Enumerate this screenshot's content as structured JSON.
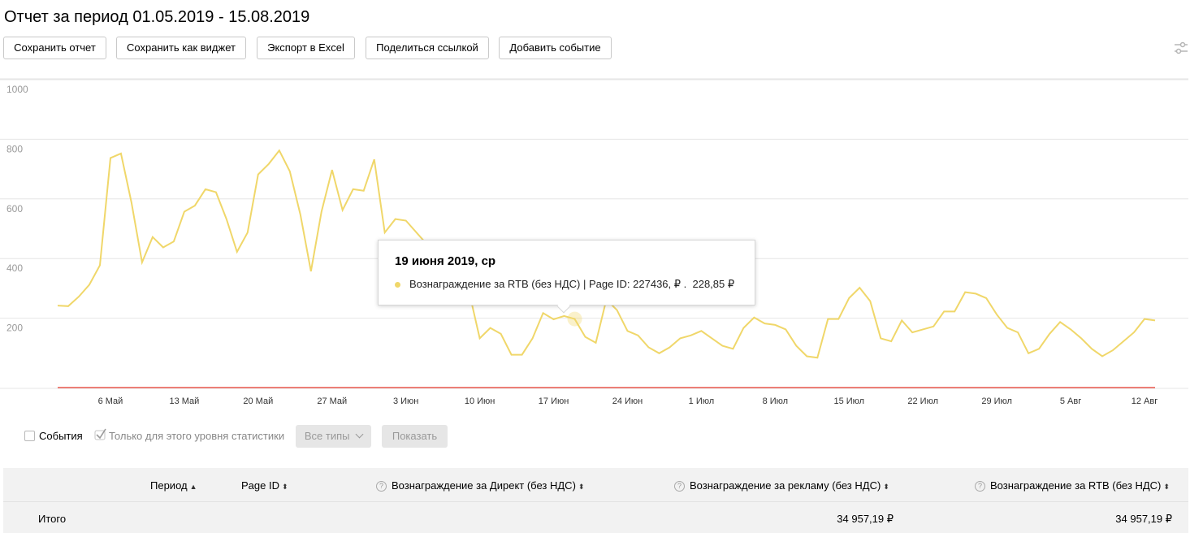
{
  "report": {
    "title": "Отчет за период 01.05.2019 - 15.08.2019"
  },
  "toolbar": {
    "save_report": "Сохранить отчет",
    "save_widget": "Сохранить как виджет",
    "export_excel": "Экспорт в Excel",
    "share_link": "Поделиться ссылкой",
    "add_event": "Добавить событие",
    "settings_icon": "sliders-icon"
  },
  "chart_data": {
    "type": "line",
    "ylim": [
      0,
      1000
    ],
    "yticks": [
      "1000",
      "800",
      "600",
      "400",
      "200"
    ],
    "xticks": [
      "6 Май",
      "13 Май",
      "20 Май",
      "27 Май",
      "3 Июн",
      "10 Июн",
      "17 Июн",
      "24 Июн",
      "1 Июл",
      "8 Июл",
      "15 Июл",
      "22 Июл",
      "29 Июл",
      "5 Авг",
      "12 Авг"
    ],
    "x_start": "2019-05-01",
    "x_end": "2019-08-15",
    "grid": true,
    "series": [
      {
        "name": "Вознаграждение за RTB (без НДС) | Page ID: 227436, ₽",
        "color": "#f0d76a",
        "values": [
          275,
          273,
          305,
          345,
          410,
          770,
          785,
          620,
          420,
          505,
          470,
          490,
          590,
          610,
          665,
          655,
          565,
          455,
          520,
          715,
          750,
          795,
          725,
          580,
          390,
          590,
          730,
          595,
          665,
          660,
          765,
          520,
          565,
          560,
          520,
          480,
          455,
          415,
          380,
          320,
          165,
          200,
          180,
          110,
          110,
          165,
          250,
          229,
          240,
          230,
          170,
          150,
          295,
          260,
          190,
          175,
          135,
          115,
          135,
          165,
          175,
          190,
          165,
          140,
          130,
          200,
          235,
          215,
          210,
          195,
          140,
          105,
          100,
          230,
          230,
          300,
          335,
          290,
          165,
          155,
          225,
          185,
          195,
          205,
          255,
          255,
          320,
          315,
          300,
          245,
          200,
          185,
          115,
          130,
          180,
          220,
          195,
          165,
          130,
          105,
          125,
          155,
          185,
          230,
          225
        ]
      }
    ],
    "baseline_color": "#e8392c"
  },
  "tooltip": {
    "date": "19 июня 2019, ср",
    "label": "Вознаграждение за RTB (без НДС) | Page ID: 227436, ₽ .",
    "value": "228,85 ₽",
    "dot_color": "#f0d76a"
  },
  "controls": {
    "events_label": "События",
    "events_checked": false,
    "level_only_label": "Только для этого уровня статистики",
    "level_only_checked": true,
    "types_select": "Все типы",
    "show_button": "Показать"
  },
  "table": {
    "columns": [
      "Период",
      "Page ID",
      "Вознаграждение за Директ (без НДС)",
      "Вознаграждение за рекламу (без НДС)",
      "Вознаграждение за RTB (без НДС)"
    ],
    "total_row": {
      "label": "Итого",
      "ad_reward": "34 957,19 ₽",
      "rtb_reward": "34 957,19 ₽"
    }
  }
}
